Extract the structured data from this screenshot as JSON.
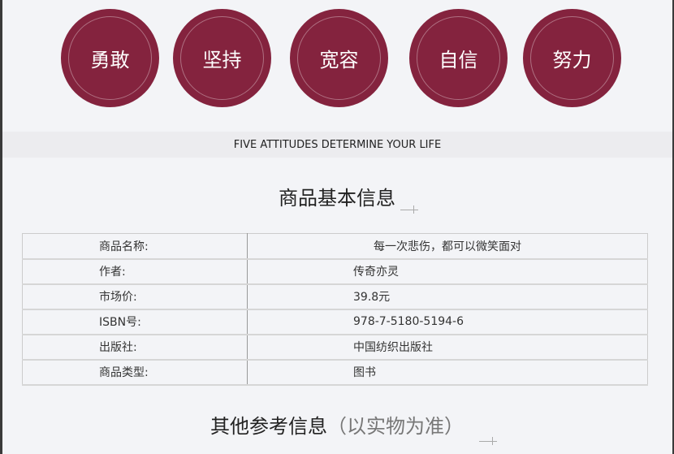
{
  "attitudes": [
    "勇敢",
    "坚持",
    "宽容",
    "自信",
    "努力"
  ],
  "banner": "FIVE ATTITUDES DETERMINE YOUR LIFE",
  "section1": {
    "title": "商品基本信息"
  },
  "table": [
    {
      "label": "商品名称:",
      "value": "每一次悲伤，都可以微笑面对"
    },
    {
      "label": "作者:",
      "value": "传奇亦灵"
    },
    {
      "label": "市场价:",
      "value": "39.8元"
    },
    {
      "label": "ISBN号:",
      "value": "978-7-5180-5194-6"
    },
    {
      "label": "出版社:",
      "value": "中国纺织出版社"
    },
    {
      "label": "商品类型:",
      "value": "图书"
    }
  ],
  "section2": {
    "title": "其他参考信息",
    "note": "（以实物为准）"
  },
  "colors": {
    "accent": "#84233e",
    "background": "#f3f4f7"
  }
}
